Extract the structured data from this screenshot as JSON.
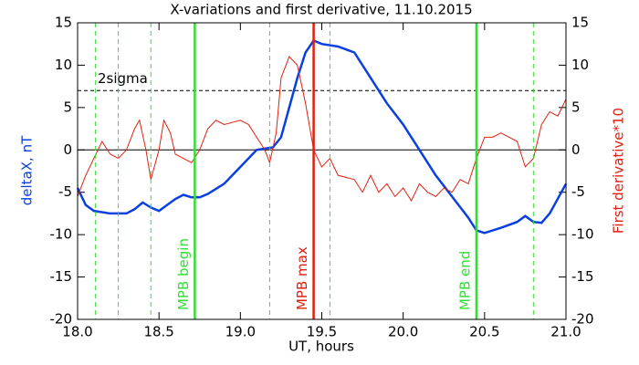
{
  "chart_data": {
    "type": "line",
    "title": "X-variations and first derivative, 11.10.2015",
    "x_label": "UT, hours",
    "y_label": "deltaX, nT",
    "y2_label": "First derivative*10",
    "xlim": [
      18.0,
      21.0
    ],
    "xticks": [
      {
        "value": 18,
        "label": "18.0"
      },
      {
        "value": 18.5,
        "label": "18.5"
      },
      {
        "value": 19,
        "label": "19.0"
      },
      {
        "value": 19.5,
        "label": "19.5"
      },
      {
        "value": 20,
        "label": "20.0"
      },
      {
        "value": 20.5,
        "label": "20.5"
      },
      {
        "value": 21,
        "label": "21.0"
      }
    ],
    "ylim": [
      -20,
      15
    ],
    "yticks": [
      -20,
      -15,
      -10,
      -5,
      0,
      5,
      10,
      15
    ],
    "y2lim": [
      -20,
      15
    ],
    "y2ticks": [
      -20,
      -15,
      -10,
      -5,
      0,
      5,
      10,
      15
    ],
    "series": [
      {
        "name": "deltaX",
        "color": "#0a3fe0",
        "width": 2.5,
        "x": [
          18.0,
          18.05,
          18.1,
          18.2,
          18.3,
          18.35,
          18.4,
          18.45,
          18.5,
          18.55,
          18.6,
          18.65,
          18.7,
          18.75,
          18.8,
          18.9,
          19.0,
          19.1,
          19.2,
          19.25,
          19.3,
          19.35,
          19.4,
          19.45,
          19.5,
          19.6,
          19.7,
          19.8,
          19.9,
          20.0,
          20.1,
          20.2,
          20.3,
          20.4,
          20.45,
          20.5,
          20.6,
          20.7,
          20.75,
          20.8,
          20.85,
          20.9,
          21.0
        ],
        "values": [
          -4.5,
          -6.5,
          -7.2,
          -7.5,
          -7.5,
          -7.0,
          -6.2,
          -6.8,
          -7.2,
          -6.5,
          -5.8,
          -5.3,
          -5.6,
          -5.6,
          -5.2,
          -4.0,
          -2.0,
          0,
          0.3,
          1.5,
          5,
          8.5,
          11.5,
          12.9,
          12.5,
          12.2,
          11.5,
          8.5,
          5.5,
          3,
          0,
          -3,
          -5.5,
          -8,
          -9.5,
          -9.8,
          -9.2,
          -8.5,
          -7.8,
          -8.5,
          -8.6,
          -7.5,
          -4
        ]
      },
      {
        "name": "First derivative*10",
        "color": "#e02010",
        "width": 1,
        "axis": "y2",
        "x": [
          18.0,
          18.05,
          18.1,
          18.15,
          18.2,
          18.25,
          18.3,
          18.35,
          18.38,
          18.42,
          18.45,
          18.5,
          18.53,
          18.57,
          18.6,
          18.65,
          18.7,
          18.75,
          18.8,
          18.85,
          18.9,
          19.0,
          19.05,
          19.1,
          19.15,
          19.18,
          19.22,
          19.25,
          19.3,
          19.35,
          19.4,
          19.45,
          19.5,
          19.55,
          19.6,
          19.7,
          19.75,
          19.8,
          19.85,
          19.9,
          19.95,
          20.0,
          20.05,
          20.1,
          20.15,
          20.2,
          20.25,
          20.3,
          20.35,
          20.4,
          20.45,
          20.5,
          20.55,
          20.6,
          20.65,
          20.7,
          20.75,
          20.8,
          20.85,
          20.9,
          20.95,
          21.0
        ],
        "values": [
          -5.5,
          -3,
          -1,
          1,
          -0.5,
          -1,
          0,
          2.5,
          3.5,
          0,
          -3.5,
          0,
          3.5,
          2,
          -0.5,
          -1,
          -1.5,
          0,
          2.5,
          3.5,
          3,
          3.5,
          3,
          1.5,
          0,
          -1.5,
          2,
          8.5,
          11,
          10,
          5.5,
          0,
          -2,
          -1,
          -3,
          -3.5,
          -5,
          -3,
          -5,
          -4,
          -5.5,
          -4.5,
          -6,
          -4,
          -5,
          -5.5,
          -4.5,
          -5,
          -3.5,
          -4,
          -1,
          1.5,
          1.5,
          2,
          1.5,
          1,
          -2,
          -1,
          3,
          4.5,
          4,
          6
        ]
      }
    ],
    "vlines": [
      {
        "x": 18.11,
        "color": "#33dd33",
        "style": "dashed"
      },
      {
        "x": 18.25,
        "color": "#33dd33",
        "style": "dashed"
      },
      {
        "x": 18.45,
        "color": "#33dd33",
        "style": "dashed"
      },
      {
        "x": 18.72,
        "color": "#33dd33",
        "style": "solid",
        "label": "MPB begin"
      },
      {
        "x": 19.18,
        "color": "#33dd33",
        "style": "dashed"
      },
      {
        "x": 19.45,
        "color": "#e02010",
        "style": "solid",
        "label": "MPB max"
      },
      {
        "x": 19.55,
        "color": "#33dd33",
        "style": "dashed"
      },
      {
        "x": 20.45,
        "color": "#33dd33",
        "style": "solid",
        "label": "MPB end"
      },
      {
        "x": 20.8,
        "color": "#33dd33",
        "style": "dashed"
      }
    ],
    "hlines": [
      {
        "y": 0,
        "color": "#000",
        "style": "solid"
      },
      {
        "y": 7,
        "color": "#000",
        "style": "dashed",
        "label": "2sigma"
      }
    ]
  }
}
